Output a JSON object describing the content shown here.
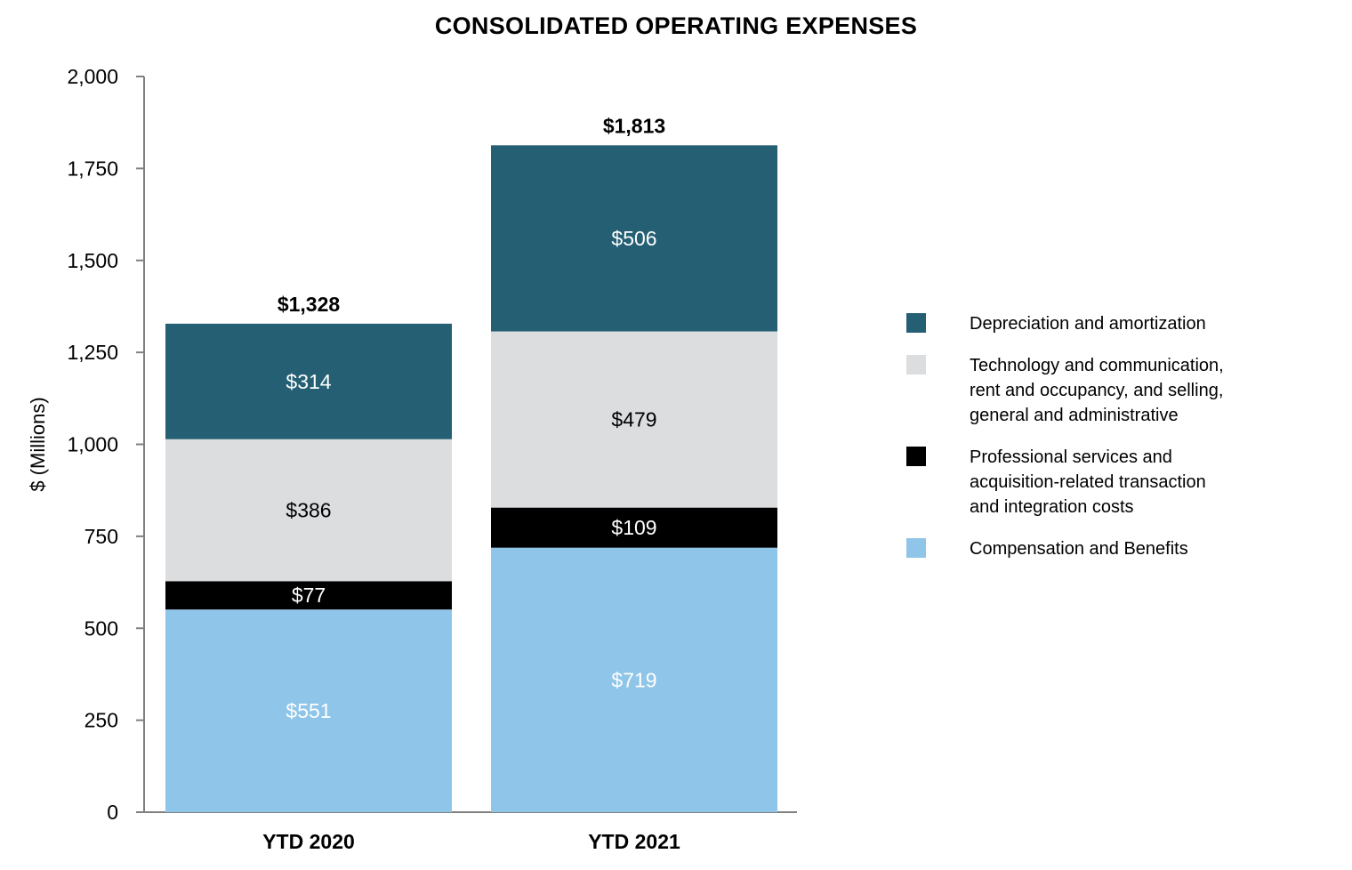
{
  "colors": {
    "depreciation": "#245f73",
    "technology": "#dcdddf",
    "professional": "#000000",
    "compensation": "#8fc5e8",
    "axis": "#808080"
  },
  "chart_data": {
    "type": "bar",
    "stacked": true,
    "title": "CONSOLIDATED OPERATING EXPENSES",
    "xlabel": "",
    "ylabel": "$ (Millions)",
    "ylim": [
      0,
      2000
    ],
    "yticks": [
      0,
      250,
      500,
      750,
      1000,
      1250,
      1500,
      1750,
      2000
    ],
    "ytick_labels": [
      "0",
      "250",
      "500",
      "750",
      "1,000",
      "1,250",
      "1,500",
      "1,750",
      "2,000"
    ],
    "categories": [
      "YTD 2020",
      "YTD 2021"
    ],
    "totals": [
      1328,
      1813
    ],
    "total_labels": [
      "$1,328",
      "$1,813"
    ],
    "grid": false,
    "legend_position": "right",
    "series": [
      {
        "name": "Compensation and Benefits",
        "color_key": "compensation",
        "values": [
          551,
          719
        ],
        "labels": [
          "$551",
          "$719"
        ],
        "label_color": "#ffffff"
      },
      {
        "name": "Professional services and acquisition-related transaction and integration costs",
        "color_key": "professional",
        "values": [
          77,
          109
        ],
        "labels": [
          "$77",
          "$109"
        ],
        "label_color": "#ffffff"
      },
      {
        "name": "Technology and communication, rent and occupancy, and selling, general and administrative",
        "color_key": "technology",
        "values": [
          386,
          479
        ],
        "labels": [
          "$386",
          "$479"
        ],
        "label_color": "#000000"
      },
      {
        "name": "Depreciation and amortization",
        "color_key": "depreciation",
        "values": [
          314,
          506
        ],
        "labels": [
          "$314",
          "$506"
        ],
        "label_color": "#ffffff"
      }
    ]
  },
  "legend": {
    "items": [
      {
        "color_key": "depreciation",
        "lines": [
          "Depreciation and amortization"
        ]
      },
      {
        "color_key": "technology",
        "lines": [
          "Technology and communication,",
          "rent and occupancy, and selling,",
          "general and administrative"
        ]
      },
      {
        "color_key": "professional",
        "lines": [
          "Professional services and",
          "acquisition-related transaction",
          "and integration costs"
        ]
      },
      {
        "color_key": "compensation",
        "lines": [
          "Compensation and Benefits"
        ]
      }
    ]
  }
}
